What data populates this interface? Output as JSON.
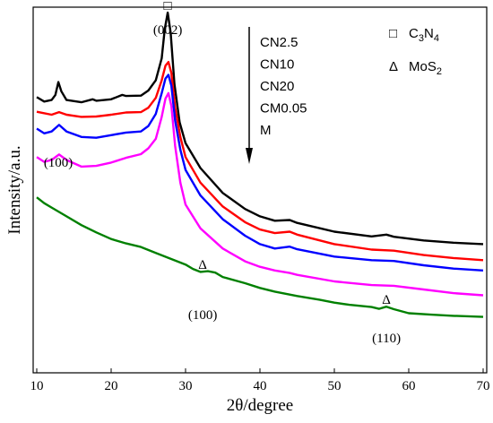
{
  "chart_data": {
    "type": "line",
    "xlabel": "2θ/degree",
    "ylabel": "Intensity/a.u.",
    "xlim": [
      10,
      70
    ],
    "x_ticks": [
      "10",
      "20",
      "30",
      "40",
      "50",
      "60",
      "70"
    ],
    "y_ticks_shown": false,
    "grid": false,
    "series": [
      {
        "name": "CN2.5",
        "color": "#000000",
        "points": [
          [
            10,
            0.754
          ],
          [
            11,
            0.742
          ],
          [
            12,
            0.746
          ],
          [
            12.5,
            0.76
          ],
          [
            12.9,
            0.795
          ],
          [
            13.3,
            0.77
          ],
          [
            14,
            0.746
          ],
          [
            16,
            0.74
          ],
          [
            17.5,
            0.748
          ],
          [
            18,
            0.744
          ],
          [
            20,
            0.748
          ],
          [
            21.5,
            0.76
          ],
          [
            22,
            0.757
          ],
          [
            24,
            0.758
          ],
          [
            25,
            0.772
          ],
          [
            26,
            0.8
          ],
          [
            26.8,
            0.86
          ],
          [
            27.2,
            0.94
          ],
          [
            27.6,
            0.985
          ],
          [
            28.0,
            0.93
          ],
          [
            28.5,
            0.79
          ],
          [
            29.2,
            0.685
          ],
          [
            30,
            0.628
          ],
          [
            32,
            0.56
          ],
          [
            35,
            0.492
          ],
          [
            38,
            0.448
          ],
          [
            40,
            0.428
          ],
          [
            42,
            0.416
          ],
          [
            44,
            0.418
          ],
          [
            45,
            0.41
          ],
          [
            50,
            0.386
          ],
          [
            55,
            0.373
          ],
          [
            57,
            0.378
          ],
          [
            58,
            0.372
          ],
          [
            62,
            0.362
          ],
          [
            66,
            0.356
          ],
          [
            70,
            0.352
          ]
        ]
      },
      {
        "name": "CN10",
        "color": "#ff0000",
        "points": [
          [
            10,
            0.714
          ],
          [
            12,
            0.706
          ],
          [
            13,
            0.713
          ],
          [
            14,
            0.706
          ],
          [
            16,
            0.7
          ],
          [
            18,
            0.701
          ],
          [
            20,
            0.706
          ],
          [
            22,
            0.712
          ],
          [
            24,
            0.713
          ],
          [
            25,
            0.725
          ],
          [
            26,
            0.752
          ],
          [
            26.8,
            0.8
          ],
          [
            27.3,
            0.84
          ],
          [
            27.7,
            0.85
          ],
          [
            28.1,
            0.82
          ],
          [
            28.6,
            0.725
          ],
          [
            29.3,
            0.645
          ],
          [
            30,
            0.59
          ],
          [
            32,
            0.52
          ],
          [
            35,
            0.455
          ],
          [
            38,
            0.412
          ],
          [
            40,
            0.392
          ],
          [
            42,
            0.382
          ],
          [
            44,
            0.386
          ],
          [
            45,
            0.378
          ],
          [
            50,
            0.352
          ],
          [
            55,
            0.337
          ],
          [
            58,
            0.334
          ],
          [
            62,
            0.322
          ],
          [
            66,
            0.314
          ],
          [
            70,
            0.308
          ]
        ]
      },
      {
        "name": "CN20",
        "color": "#0000ff",
        "points": [
          [
            10,
            0.668
          ],
          [
            11,
            0.655
          ],
          [
            12,
            0.66
          ],
          [
            13,
            0.678
          ],
          [
            14,
            0.66
          ],
          [
            16,
            0.645
          ],
          [
            18,
            0.643
          ],
          [
            20,
            0.65
          ],
          [
            22,
            0.657
          ],
          [
            24,
            0.66
          ],
          [
            25,
            0.675
          ],
          [
            26,
            0.708
          ],
          [
            26.8,
            0.765
          ],
          [
            27.3,
            0.805
          ],
          [
            27.7,
            0.815
          ],
          [
            28.1,
            0.785
          ],
          [
            28.6,
            0.69
          ],
          [
            29.3,
            0.61
          ],
          [
            30,
            0.555
          ],
          [
            32,
            0.485
          ],
          [
            35,
            0.42
          ],
          [
            38,
            0.375
          ],
          [
            40,
            0.352
          ],
          [
            42,
            0.34
          ],
          [
            44,
            0.345
          ],
          [
            45,
            0.338
          ],
          [
            50,
            0.318
          ],
          [
            55,
            0.308
          ],
          [
            58,
            0.306
          ],
          [
            62,
            0.294
          ],
          [
            66,
            0.285
          ],
          [
            70,
            0.28
          ]
        ]
      },
      {
        "name": "CM0.05",
        "color": "#ff00ff",
        "points": [
          [
            10,
            0.59
          ],
          [
            11,
            0.577
          ],
          [
            12,
            0.582
          ],
          [
            13,
            0.597
          ],
          [
            14,
            0.582
          ],
          [
            16,
            0.564
          ],
          [
            18,
            0.566
          ],
          [
            20,
            0.575
          ],
          [
            22,
            0.588
          ],
          [
            24,
            0.598
          ],
          [
            25,
            0.614
          ],
          [
            26,
            0.64
          ],
          [
            26.8,
            0.7
          ],
          [
            27.3,
            0.75
          ],
          [
            27.7,
            0.765
          ],
          [
            28.1,
            0.73
          ],
          [
            28.6,
            0.62
          ],
          [
            29.3,
            0.52
          ],
          [
            30,
            0.46
          ],
          [
            32,
            0.395
          ],
          [
            35,
            0.34
          ],
          [
            38,
            0.305
          ],
          [
            40,
            0.29
          ],
          [
            42,
            0.28
          ],
          [
            44,
            0.273
          ],
          [
            45,
            0.268
          ],
          [
            50,
            0.25
          ],
          [
            55,
            0.24
          ],
          [
            58,
            0.238
          ],
          [
            62,
            0.228
          ],
          [
            66,
            0.218
          ],
          [
            70,
            0.212
          ]
        ]
      },
      {
        "name": "M",
        "color": "#008000",
        "points": [
          [
            10,
            0.48
          ],
          [
            11,
            0.464
          ],
          [
            12,
            0.452
          ],
          [
            14,
            0.428
          ],
          [
            16,
            0.404
          ],
          [
            18,
            0.384
          ],
          [
            20,
            0.366
          ],
          [
            22,
            0.354
          ],
          [
            24,
            0.344
          ],
          [
            26,
            0.328
          ],
          [
            28,
            0.312
          ],
          [
            30,
            0.296
          ],
          [
            31,
            0.284
          ],
          [
            32,
            0.276
          ],
          [
            33,
            0.278
          ],
          [
            34,
            0.274
          ],
          [
            35,
            0.262
          ],
          [
            38,
            0.245
          ],
          [
            40,
            0.232
          ],
          [
            42,
            0.222
          ],
          [
            45,
            0.21
          ],
          [
            48,
            0.2
          ],
          [
            50,
            0.192
          ],
          [
            52,
            0.186
          ],
          [
            55,
            0.18
          ],
          [
            56,
            0.175
          ],
          [
            57,
            0.181
          ],
          [
            58,
            0.174
          ],
          [
            60,
            0.163
          ],
          [
            63,
            0.159
          ],
          [
            66,
            0.156
          ],
          [
            70,
            0.153
          ]
        ]
      }
    ],
    "annotations": [
      {
        "text": "(002)",
        "x": 27.6
      },
      {
        "text": "(100)",
        "x": 12.9
      },
      {
        "text": "(100)",
        "x": 32.3
      },
      {
        "text": "(110)",
        "x": 57.0
      }
    ],
    "markers": [
      {
        "symbol": "□",
        "x": 27.6,
        "series": "CN2.5"
      },
      {
        "symbol": "Δ",
        "x": 32.3,
        "series": "M"
      },
      {
        "symbol": "Δ",
        "x": 57.0,
        "series": "M"
      }
    ],
    "legend_order": [
      "CN2.5",
      "CN10",
      "CN20",
      "CM0.05",
      "M"
    ],
    "legend_placement": "top-right, with downward arrow",
    "symbol_legend": [
      {
        "symbol": "□",
        "label_main": "C",
        "sub1": "3",
        "label_mid": "N",
        "sub2": "4"
      },
      {
        "symbol": "Δ",
        "label_main": "MoS",
        "sub1": "2",
        "label_mid": "",
        "sub2": ""
      }
    ]
  }
}
